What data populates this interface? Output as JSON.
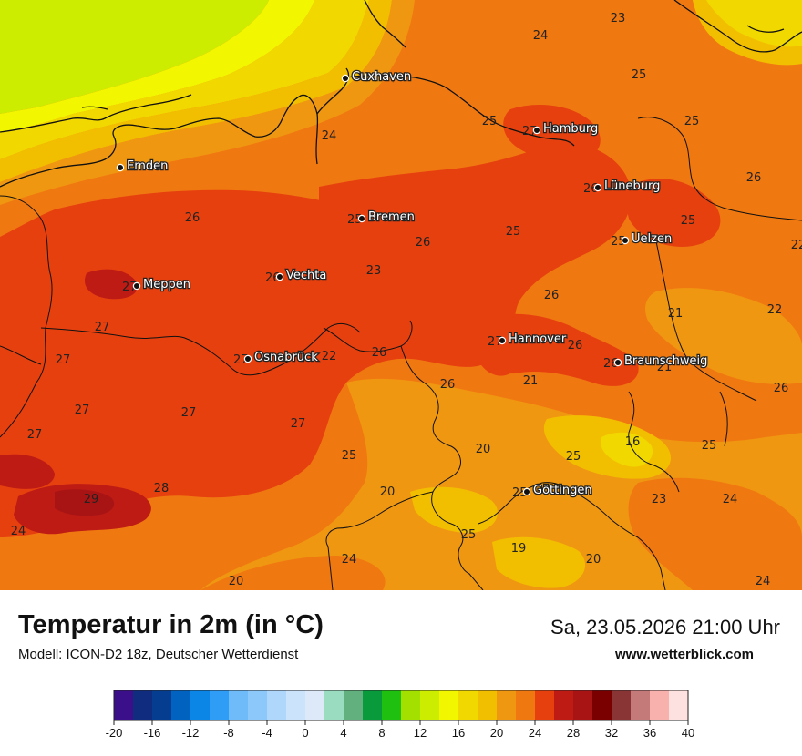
{
  "title": "Temperatur in 2m (in °C)",
  "model": "Modell: ICON-D2 18z, Deutscher Wetterdienst",
  "datetime": "Sa, 23.05.2026 21:00 Uhr",
  "website": "www.wetterblick.com",
  "cities": [
    {
      "name": "Cuxhaven",
      "value": null
    },
    {
      "name": "Hamburg",
      "value": "27"
    },
    {
      "name": "Emden",
      "value": null
    },
    {
      "name": "Lüneburg",
      "value": "26"
    },
    {
      "name": "Bremen",
      "value": "25"
    },
    {
      "name": "Uelzen",
      "value": "25"
    },
    {
      "name": "Vechta",
      "value": "26"
    },
    {
      "name": "Meppen",
      "value": "27"
    },
    {
      "name": "Hannover",
      "value": "27"
    },
    {
      "name": "Osnabrück",
      "value": "27"
    },
    {
      "name": "Braunschweig",
      "value": "26"
    },
    {
      "name": "Göttingen",
      "value": "25"
    }
  ],
  "grid_values": [
    "23",
    "24",
    "25",
    "25",
    "24",
    "25",
    "26",
    "26",
    "25",
    "23",
    "25",
    "26",
    "27",
    "21",
    "22",
    "27",
    "27",
    "26",
    "26",
    "22",
    "21",
    "21",
    "26",
    "27",
    "27",
    "27",
    "26",
    "20",
    "25",
    "16",
    "25",
    "29",
    "28",
    "20",
    "23",
    "24",
    "24",
    "25",
    "19",
    "20",
    "24",
    "20",
    "22",
    "24",
    "25",
    "26"
  ],
  "legend": {
    "ticks": [
      "-20",
      "-16",
      "-12",
      "-8",
      "-4",
      "0",
      "4",
      "8",
      "12",
      "16",
      "20",
      "24",
      "28",
      "32",
      "36",
      "40"
    ],
    "colors": [
      "#3c0f8a",
      "#0f2c7e",
      "#053e90",
      "#0262c0",
      "#0b86e6",
      "#2f9cf5",
      "#6fbaf8",
      "#8dc8fa",
      "#aed7fb",
      "#cbe4fb",
      "#dde9f8",
      "#99dcc0",
      "#63b07f",
      "#099a3c",
      "#20c010",
      "#a3e000",
      "#ccec00",
      "#f2f700",
      "#f1d900",
      "#f2bf00",
      "#f09711",
      "#f07811",
      "#e6400f",
      "#bd1b14",
      "#a81414",
      "#7a0000",
      "#8a3535",
      "#c57a7a",
      "#f9b1ad",
      "#fde0e0"
    ]
  }
}
